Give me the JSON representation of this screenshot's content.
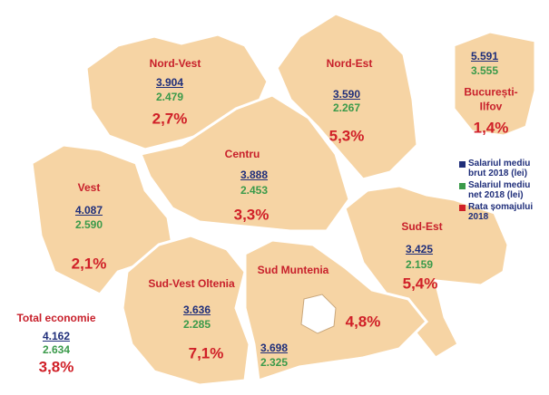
{
  "regions": [
    {
      "name": "Nord-Vest",
      "gross": "3.904",
      "net": "2.479",
      "rate": "2,7%"
    },
    {
      "name": "Nord-Est",
      "gross": "3.590",
      "net": "2.267",
      "rate": "5,3%"
    },
    {
      "name": "București-Ilfov",
      "gross": "5.591",
      "net": "3.555",
      "rate": "1,4%"
    },
    {
      "name": "Centru",
      "gross": "3.888",
      "net": "2.453",
      "rate": "3,3%"
    },
    {
      "name": "Vest",
      "gross": "4.087",
      "net": "2.590",
      "rate": "2,1%"
    },
    {
      "name": "Sud-Est",
      "gross": "3.425",
      "net": "2.159",
      "rate": "5,4%"
    },
    {
      "name": "Sud-Vest Oltenia",
      "gross": "3.636",
      "net": "2.285",
      "rate": "7,1%"
    },
    {
      "name": "Sud Muntenia",
      "gross": "3.698",
      "net": "2.325",
      "rate": "4,8%"
    }
  ],
  "total": {
    "name": "Total economie",
    "gross": "4.162",
    "net": "2.634",
    "rate": "3,8%"
  },
  "legend": [
    {
      "label": "Salariul mediu brut 2018 (lei)",
      "color": "#1f2e7a"
    },
    {
      "label": "Salariul mediu net 2018 (lei)",
      "color": "#3a9a4a"
    },
    {
      "label": "Rata șomajului 2018",
      "color": "#d02028"
    }
  ]
}
